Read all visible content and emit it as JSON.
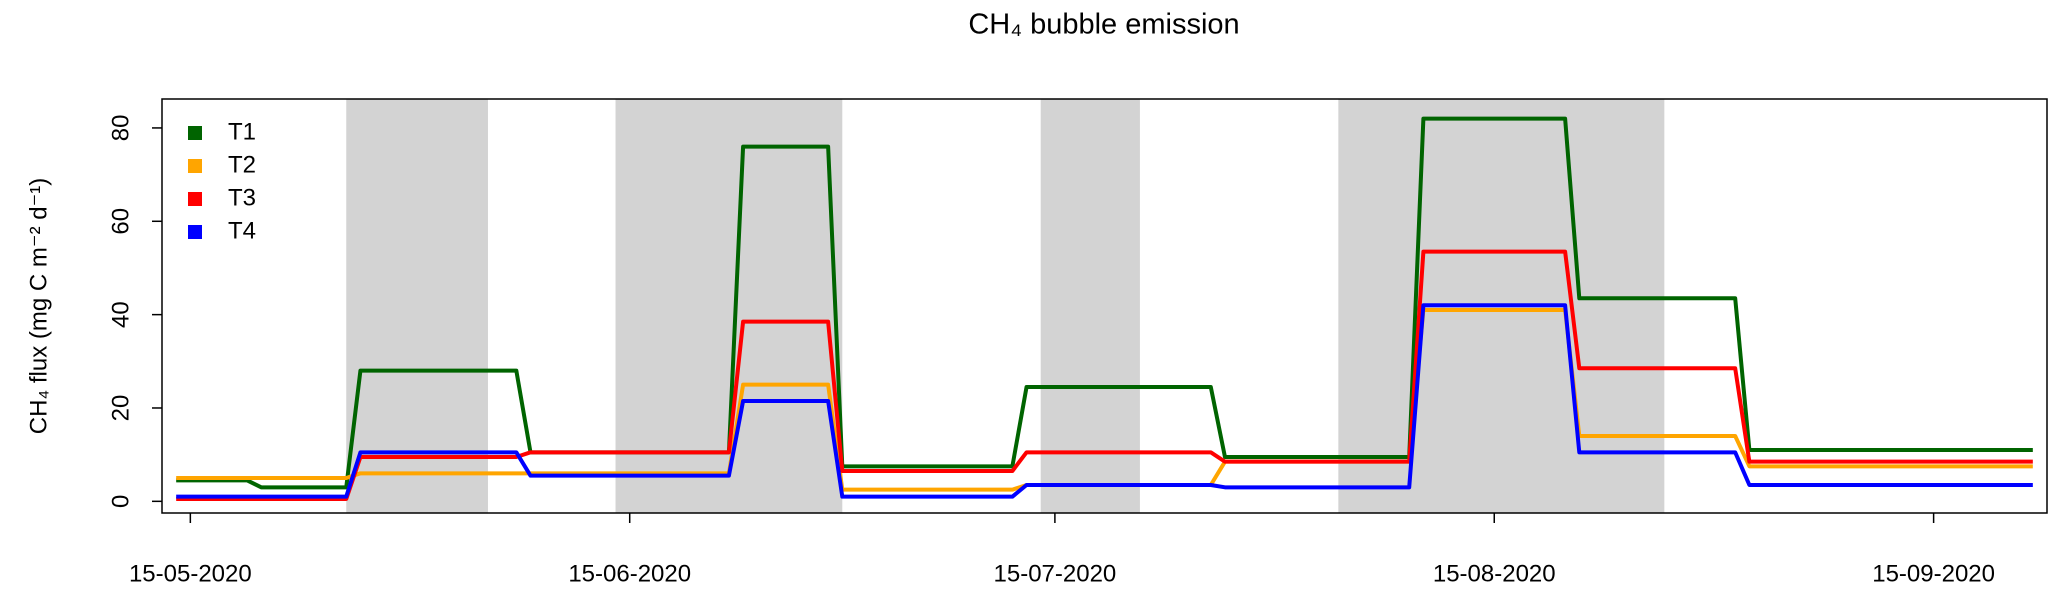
{
  "chart_data": {
    "type": "line",
    "title": "CH₄ bubble emission",
    "ylabel": "CH₄ flux (mg C m⁻² d⁻¹)",
    "x": [
      "2020-05-14",
      "2020-05-19",
      "2020-05-20",
      "2020-05-26",
      "2020-05-27",
      "2020-06-07",
      "2020-06-08",
      "2020-06-22",
      "2020-06-23",
      "2020-06-29",
      "2020-06-30",
      "2020-07-12",
      "2020-07-13",
      "2020-07-26",
      "2020-07-27",
      "2020-08-09",
      "2020-08-10",
      "2020-08-20",
      "2020-08-21",
      "2020-09-01",
      "2020-09-02",
      "2020-09-22"
    ],
    "series": [
      {
        "name": "T1",
        "color": "#006400",
        "values": [
          4.5,
          4.5,
          3,
          3,
          28,
          28,
          10.5,
          10.5,
          76,
          76,
          7.5,
          7.5,
          24.5,
          24.5,
          9.5,
          9.5,
          82,
          82,
          43.5,
          43.5,
          11,
          11
        ]
      },
      {
        "name": "T2",
        "color": "#FFA500",
        "values": [
          5,
          5,
          5,
          5,
          6,
          6,
          6,
          6,
          25,
          25,
          2.5,
          2.5,
          3.5,
          3.5,
          8.5,
          8.5,
          41,
          41,
          14,
          14,
          7.5,
          7.5
        ]
      },
      {
        "name": "T3",
        "color": "#FF0000",
        "values": [
          0.5,
          0.5,
          0.5,
          0.5,
          9.5,
          9.5,
          10.5,
          10.5,
          38.5,
          38.5,
          6.5,
          6.5,
          10.5,
          10.5,
          8.5,
          8.5,
          53.5,
          53.5,
          28.5,
          28.5,
          8.5,
          8.5
        ]
      },
      {
        "name": "T4",
        "color": "#0000FF",
        "values": [
          1,
          1,
          1,
          1,
          10.5,
          10.5,
          5.5,
          5.5,
          21.5,
          21.5,
          1,
          1,
          3.5,
          3.5,
          3,
          3,
          42,
          42,
          10.5,
          10.5,
          3.5,
          3.5
        ]
      }
    ],
    "shaded_periods": [
      [
        "2020-05-26",
        "2020-06-05"
      ],
      [
        "2020-06-14",
        "2020-06-30"
      ],
      [
        "2020-07-14",
        "2020-07-21"
      ],
      [
        "2020-08-04",
        "2020-08-27"
      ]
    ],
    "shade_color": "#d3d3d3",
    "xlim": [
      "2020-05-13",
      "2020-09-23"
    ],
    "xticks": [
      {
        "value": "2020-05-15",
        "label": "15-05-2020"
      },
      {
        "value": "2020-06-15",
        "label": "15-06-2020"
      },
      {
        "value": "2020-07-15",
        "label": "15-07-2020"
      },
      {
        "value": "2020-08-15",
        "label": "15-08-2020"
      },
      {
        "value": "2020-09-15",
        "label": "15-09-2020"
      }
    ],
    "ylim": [
      -2.5,
      86.2
    ],
    "yticks": [
      0,
      20,
      40,
      60,
      80
    ],
    "legend": "top-left"
  }
}
